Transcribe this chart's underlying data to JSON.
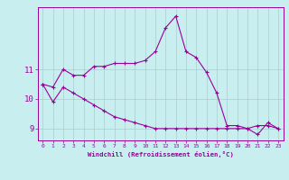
{
  "xlabel": "Windchill (Refroidissement éolien,°C)",
  "background_color": "#c8eef0",
  "line_color": "#990099",
  "grid_color": "#aacccc",
  "x_hours": [
    0,
    1,
    2,
    3,
    4,
    5,
    6,
    7,
    8,
    9,
    10,
    11,
    12,
    13,
    14,
    15,
    16,
    17,
    18,
    19,
    20,
    21,
    22,
    23
  ],
  "series1": [
    10.5,
    10.4,
    11.0,
    10.8,
    10.8,
    11.1,
    11.1,
    11.2,
    11.2,
    11.2,
    11.3,
    11.6,
    12.4,
    12.8,
    11.6,
    11.4,
    10.9,
    10.2,
    9.1,
    9.1,
    9.0,
    8.8,
    9.2,
    9.0
  ],
  "series2": [
    10.5,
    9.9,
    10.4,
    10.2,
    10.0,
    9.8,
    9.6,
    9.4,
    9.3,
    9.2,
    9.1,
    9.0,
    9.0,
    9.0,
    9.0,
    9.0,
    9.0,
    9.0,
    9.0,
    9.0,
    9.0,
    9.1,
    9.1,
    9.0
  ],
  "ylim": [
    8.6,
    13.1
  ],
  "yticks": [
    9,
    10,
    11
  ],
  "xlim": [
    -0.5,
    23.5
  ],
  "xtick_labels": [
    "0",
    "1",
    "2",
    "3",
    "4",
    "5",
    "6",
    "7",
    "8",
    "9",
    "10",
    "11",
    "12",
    "13",
    "14",
    "15",
    "16",
    "17",
    "18",
    "19",
    "20",
    "21",
    "22",
    "23"
  ]
}
